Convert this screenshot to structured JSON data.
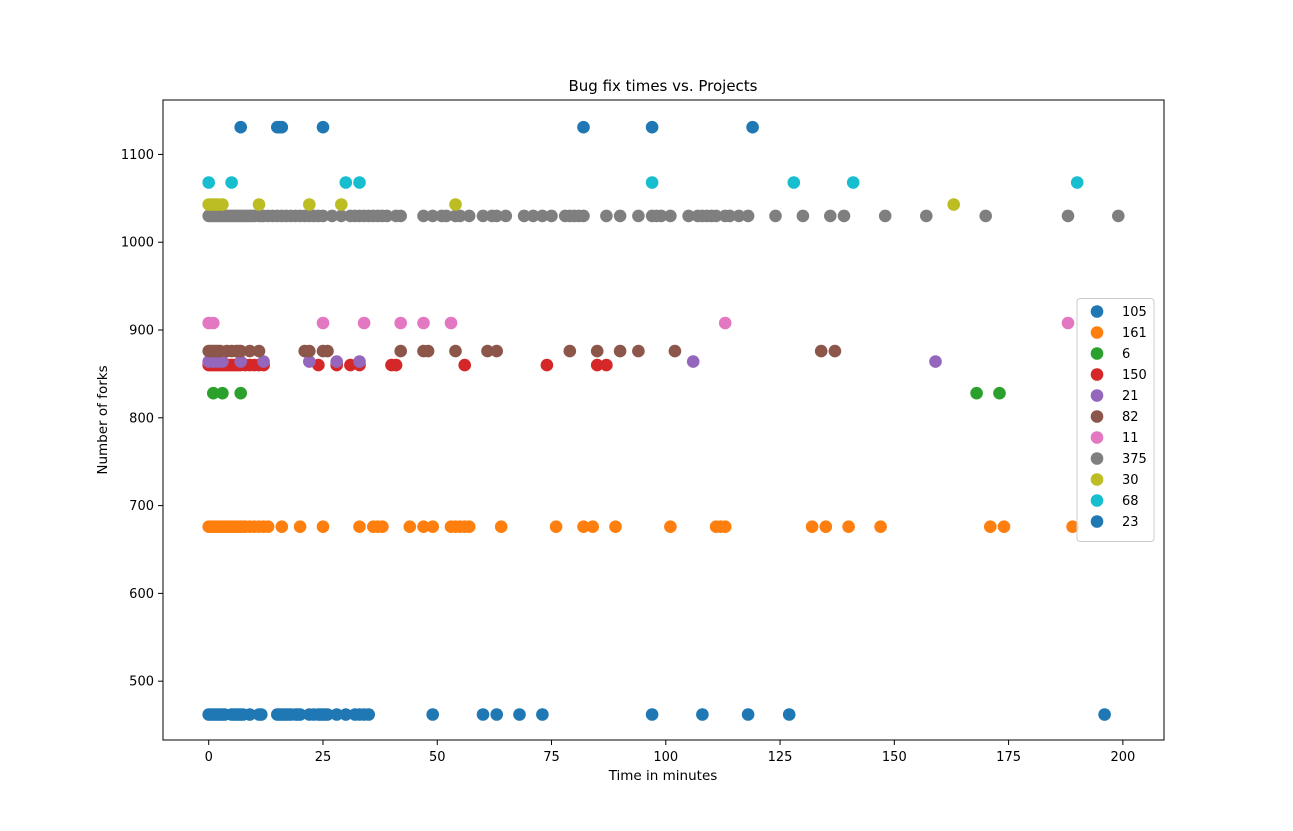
{
  "chart_data": {
    "type": "scatter",
    "title": "Bug fix times vs. Projects",
    "xlabel": "Time in minutes",
    "ylabel": "Number of forks",
    "xlim": [
      -10,
      209
    ],
    "ylim": [
      433,
      1162
    ],
    "xticks": [
      0,
      25,
      50,
      75,
      100,
      125,
      150,
      175,
      200
    ],
    "yticks": [
      500,
      600,
      700,
      800,
      900,
      1000,
      1100
    ],
    "grid": false,
    "legend_position": "center-right",
    "series": [
      {
        "name": "105",
        "color": "#1f77b4",
        "y": 462,
        "x": [
          0,
          0.5,
          1,
          1.5,
          2,
          2.5,
          3,
          3.5,
          5,
          5.5,
          6,
          6.5,
          7,
          7.5,
          9,
          11,
          11.5,
          15,
          15.5,
          16,
          16.5,
          17,
          17.5,
          18,
          19,
          19.5,
          20,
          22,
          23,
          24,
          24.5,
          25,
          25.5,
          26,
          28,
          30,
          32,
          33,
          34,
          35,
          49,
          60,
          63,
          68,
          73,
          97,
          108,
          118,
          127,
          196
        ]
      },
      {
        "name": "161",
        "color": "#ff7f0e",
        "y": 676,
        "x": [
          0,
          0.5,
          1,
          1.5,
          2,
          2.5,
          3,
          3.5,
          4,
          4.5,
          5,
          5.5,
          6,
          6.5,
          7,
          7.5,
          8,
          9,
          10,
          11,
          12,
          13,
          16,
          20,
          25,
          33,
          36,
          37,
          38,
          44,
          47,
          49,
          53,
          54,
          55,
          56,
          57,
          64,
          76,
          82,
          84,
          89,
          101,
          111,
          112,
          113,
          132,
          135,
          140,
          147,
          171,
          174,
          189
        ]
      },
      {
        "name": "6",
        "color": "#2ca02c",
        "y": 828,
        "x": [
          1,
          3,
          7,
          168,
          173
        ]
      },
      {
        "name": "150",
        "color": "#d62728",
        "y": 860,
        "x": [
          0,
          0.5,
          1,
          1.5,
          2,
          2.5,
          3,
          3.5,
          4,
          4.5,
          5,
          5.5,
          6,
          6.5,
          7,
          8,
          9,
          10,
          11,
          12,
          24,
          28,
          31,
          33,
          40,
          41,
          56,
          74,
          85,
          87
        ]
      },
      {
        "name": "21",
        "color": "#9467bd",
        "y": 864,
        "x": [
          0,
          1,
          2,
          3,
          7,
          12,
          22,
          28,
          33,
          106,
          159
        ]
      },
      {
        "name": "82",
        "color": "#8c564b",
        "y": 876,
        "x": [
          0,
          0.5,
          1,
          1.5,
          2,
          2.5,
          4,
          5,
          6,
          6.5,
          7,
          9,
          11,
          21,
          22,
          25,
          26,
          42,
          47,
          48,
          54,
          61,
          63,
          79,
          85,
          90,
          94,
          102,
          134,
          137
        ]
      },
      {
        "name": "11",
        "color": "#e377c2",
        "y": 908,
        "x": [
          0,
          1,
          25,
          34,
          42,
          47,
          53,
          113,
          188
        ]
      },
      {
        "name": "375",
        "color": "#7f7f7f",
        "y": 1030,
        "x": [
          0,
          0.5,
          1,
          1.5,
          2,
          2.5,
          3,
          3.5,
          4,
          4.5,
          5,
          5.5,
          6,
          6.5,
          7,
          7.5,
          8,
          8.5,
          9,
          9.5,
          10,
          11,
          11.5,
          12,
          13,
          14,
          15,
          16,
          17,
          18,
          19,
          20,
          21,
          22,
          23,
          24,
          25,
          27,
          29,
          31,
          32,
          33,
          34,
          35,
          36,
          37,
          38,
          39,
          41,
          42,
          47,
          49,
          51,
          52,
          54,
          55,
          57,
          60,
          62,
          63,
          65,
          69,
          71,
          73,
          75,
          78,
          79,
          80,
          81,
          82,
          87,
          90,
          94,
          97,
          98,
          99,
          101,
          105,
          107,
          108,
          109,
          110,
          111,
          113,
          114,
          116,
          118,
          124,
          130,
          136,
          139,
          148,
          157,
          170,
          188,
          199
        ]
      },
      {
        "name": "30",
        "color": "#bcbd22",
        "y": 1043,
        "x": [
          0,
          0.5,
          1,
          1.5,
          2,
          3,
          11,
          22,
          29,
          54,
          163
        ]
      },
      {
        "name": "68",
        "color": "#17becf",
        "y": 1068,
        "x": [
          0,
          5,
          30,
          33,
          97,
          128,
          141,
          190
        ]
      },
      {
        "name": "23",
        "color": "#1f77b4",
        "y": 1131,
        "x": [
          7,
          15,
          15.5,
          16,
          25,
          82,
          97,
          119
        ]
      }
    ]
  }
}
